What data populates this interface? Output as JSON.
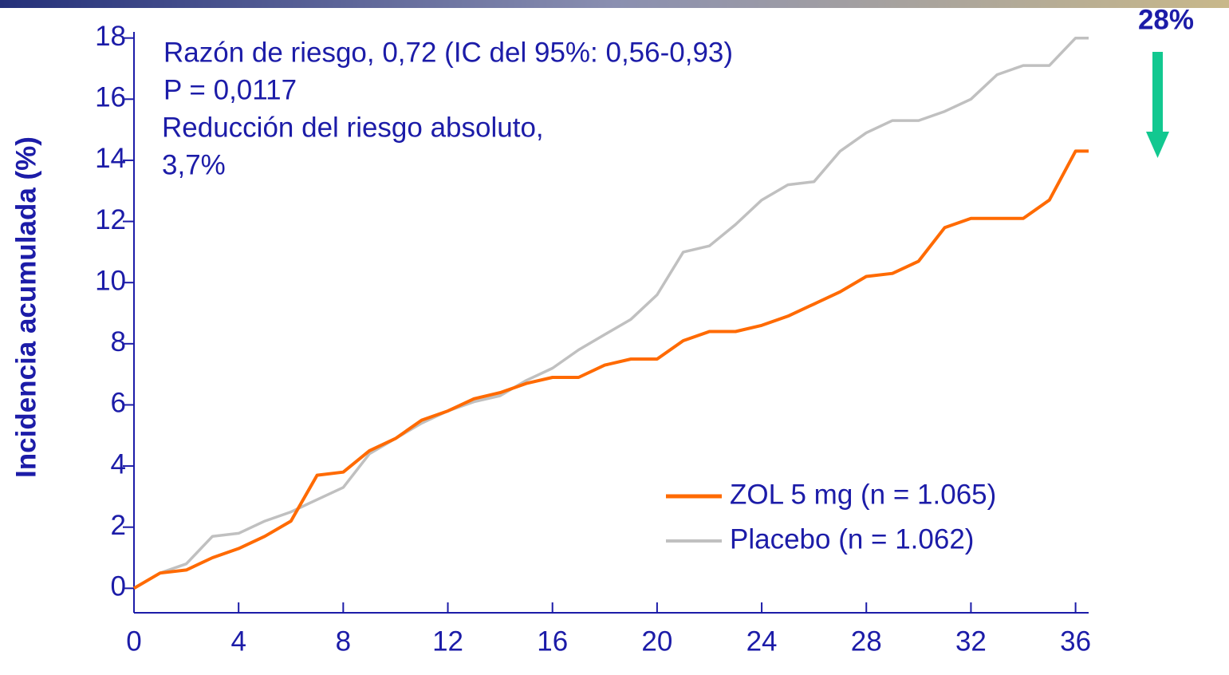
{
  "chart_data": {
    "type": "line",
    "y_label": "Incidencia acumulada (%)",
    "annotations": [
      "Razón de riesgo, 0,72 (IC del 95%: 0,56-0,93)",
      "P = 0,0117",
      "Reducción del riesgo absoluto,",
      "3,7%",
      "28%"
    ],
    "x": [
      0,
      1,
      2,
      3,
      4,
      5,
      6,
      7,
      8,
      9,
      10,
      11,
      12,
      13,
      14,
      15,
      16,
      17,
      18,
      19,
      20,
      21,
      22,
      23,
      24,
      25,
      26,
      27,
      28,
      29,
      30,
      31,
      32,
      33,
      34,
      35,
      36,
      36.5
    ],
    "series": [
      {
        "name": "ZOL 5 mg (n = 1.065)",
        "color": "#ff6a00",
        "values": [
          0,
          0.5,
          0.6,
          1.0,
          1.3,
          1.7,
          2.2,
          3.7,
          3.8,
          4.5,
          4.9,
          5.5,
          5.8,
          6.2,
          6.4,
          6.7,
          6.9,
          6.9,
          7.3,
          7.5,
          7.5,
          8.1,
          8.4,
          8.4,
          8.6,
          8.9,
          9.3,
          9.7,
          10.2,
          10.3,
          10.7,
          11.8,
          12.1,
          12.1,
          12.1,
          12.7,
          14.3,
          14.3
        ]
      },
      {
        "name": "Placebo (n = 1.062)",
        "color": "#c0c0c0",
        "values": [
          0,
          0.5,
          0.8,
          1.7,
          1.8,
          2.2,
          2.5,
          2.9,
          3.3,
          4.4,
          4.9,
          5.4,
          5.8,
          6.1,
          6.3,
          6.8,
          7.2,
          7.8,
          8.3,
          8.8,
          9.6,
          11.0,
          11.2,
          11.9,
          12.7,
          13.2,
          13.3,
          14.3,
          14.9,
          15.3,
          15.3,
          15.6,
          16.0,
          16.8,
          17.1,
          17.1,
          18.0,
          18.0
        ]
      }
    ],
    "xlim": [
      0,
      36.5
    ],
    "xticks": [
      0,
      4,
      8,
      12,
      16,
      20,
      24,
      28,
      32,
      36
    ],
    "ylim": [
      -0.8,
      18.2
    ],
    "yticks": [
      0,
      2,
      4,
      6,
      8,
      10,
      12,
      14,
      16,
      18
    ],
    "grid": false,
    "legend": "lower right"
  }
}
